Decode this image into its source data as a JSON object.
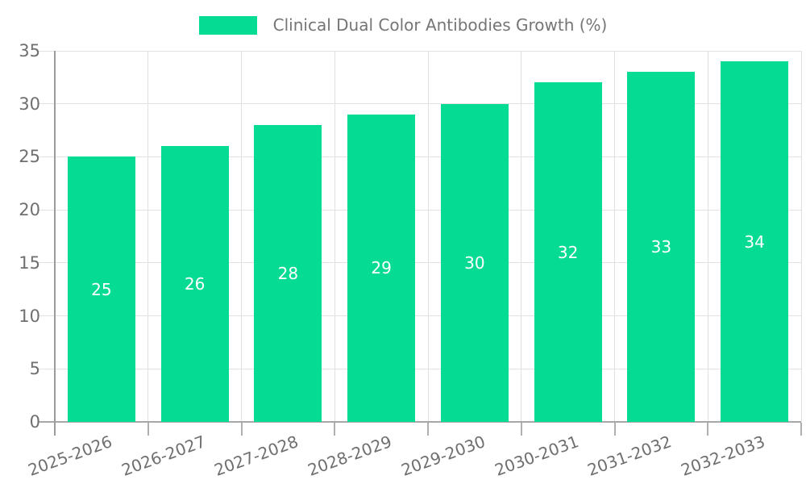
{
  "chart_data": {
    "type": "bar",
    "title": "Clinical Dual Color Antibodies Growth (%)",
    "categories": [
      "2025-2026",
      "2026-2027",
      "2027-2028",
      "2028-2029",
      "2029-2030",
      "2030-2031",
      "2031-2032",
      "2032-2033"
    ],
    "values": [
      25,
      26,
      28,
      29,
      30,
      32,
      33,
      34
    ],
    "xlabel": "",
    "ylabel": "",
    "ylim": [
      0,
      35
    ],
    "yticks": [
      0,
      5,
      10,
      15,
      20,
      25,
      30,
      35
    ],
    "grid": "on",
    "legend_position": "top-center",
    "legend_entries": [
      "Clinical Dual Color Antibodies Growth (%)"
    ],
    "bar_color": "#06db93",
    "value_label_color": "#ffffff",
    "axis_text_color": "#6f6f6f",
    "legend_text_color": "#757575",
    "gridline_color": "#e2e2e6",
    "axis_line_color": "#9b9b9b"
  }
}
